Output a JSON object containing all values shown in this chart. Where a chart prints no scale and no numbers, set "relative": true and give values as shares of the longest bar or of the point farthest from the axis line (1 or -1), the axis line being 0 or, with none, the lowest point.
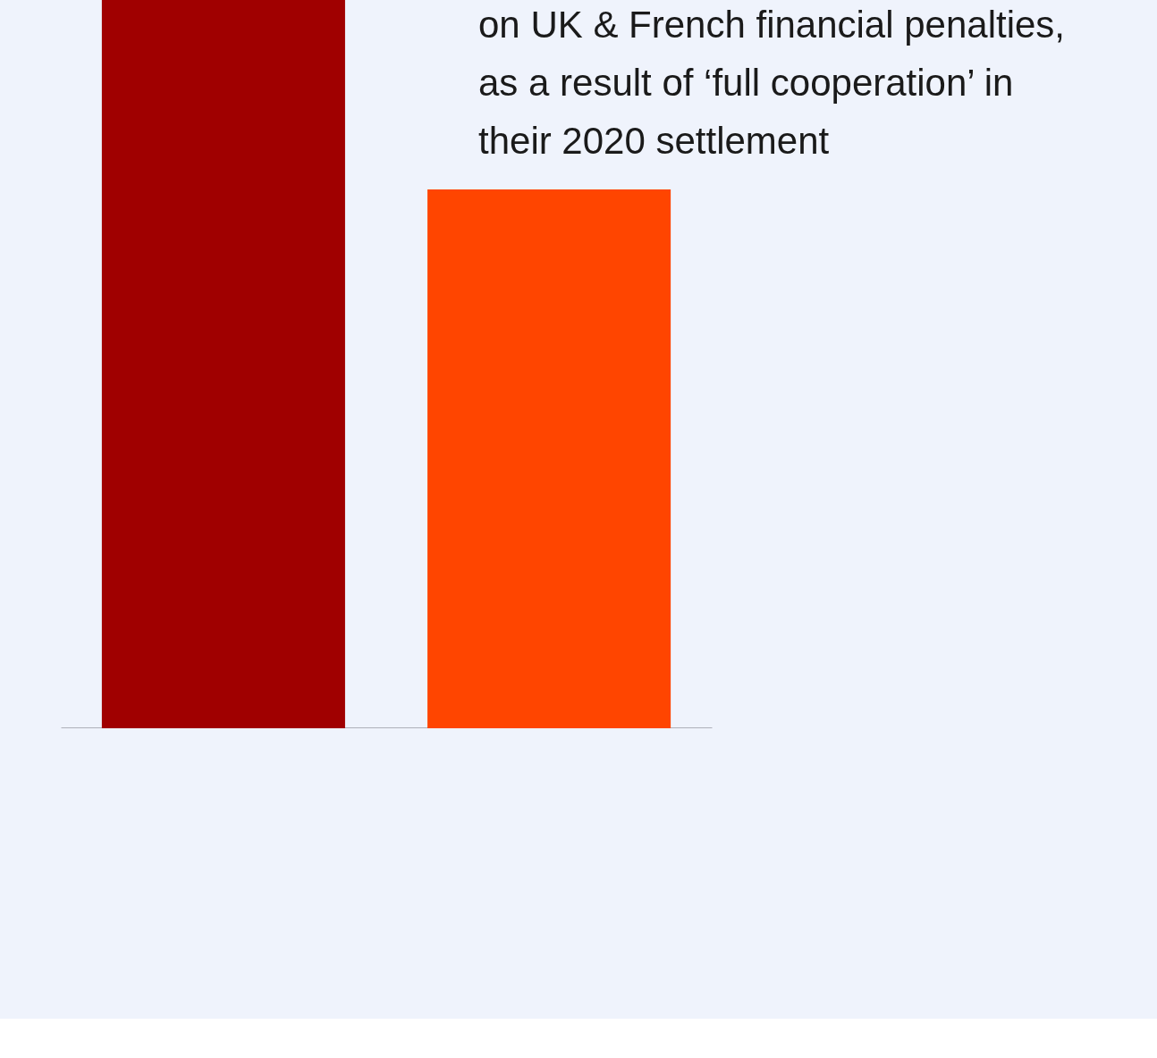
{
  "chart_data": {
    "type": "bar",
    "relative": true,
    "categories": [
      null,
      null
    ],
    "values": [
      1,
      0.74
    ],
    "colors": [
      "#a00000",
      "#ff4500"
    ],
    "annotations": [
      "on UK & French financial penalties, as a result of ‘full cooperation’ in their 2020 settlement"
    ]
  }
}
